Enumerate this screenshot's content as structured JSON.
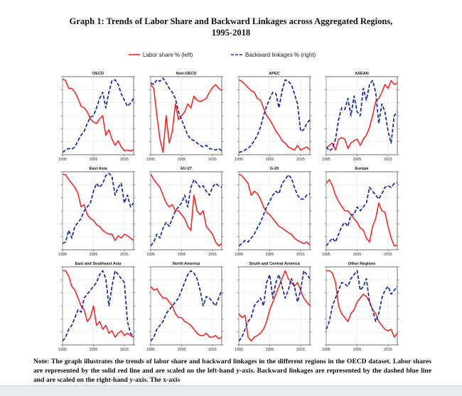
{
  "title_line1": "Graph 1: Trends of Labor Share and Backward Linkages across Aggregated Regions,",
  "title_line2": "1995-2018",
  "legend": {
    "labor": "Labor share % (left)",
    "backward": "Backward linkages % (right)"
  },
  "colors": {
    "labor": "#ff1a1a",
    "backward": "#1f2fa8"
  },
  "note_text": "Note: The graph illustrates the trends of labor share and backward linkages in the different regions in the OECD dataset. Labor shares are represented by the solid red line and are scaled on the left-hand y-axis. Backward linkages are represented by the dashed blue line and are scaled on the right-hand y-axis. The x-axis",
  "chart_data": {
    "type": "line",
    "x_ticks": [
      "1995",
      "2005",
      "2015"
    ],
    "x": [
      1995,
      1996,
      1997,
      1998,
      1999,
      2000,
      2001,
      2002,
      2003,
      2004,
      2005,
      2006,
      2007,
      2008,
      2009,
      2010,
      2011,
      2012,
      2013,
      2014,
      2015,
      2016,
      2017,
      2018
    ],
    "panels": [
      {
        "name": "OECD",
        "labor": [
          0.97,
          0.95,
          0.85,
          0.85,
          0.8,
          0.72,
          0.62,
          0.6,
          0.55,
          0.46,
          0.42,
          0.4,
          0.46,
          0.5,
          0.25,
          0.32,
          0.2,
          0.12,
          0.18,
          0.1,
          0.05,
          0.06,
          0.05,
          0.06
        ],
        "backward": [
          0.03,
          0.06,
          0.08,
          0.07,
          0.1,
          0.18,
          0.25,
          0.3,
          0.4,
          0.48,
          0.5,
          0.6,
          0.72,
          0.8,
          0.6,
          0.8,
          0.95,
          0.96,
          0.9,
          0.78,
          0.7,
          0.62,
          0.66,
          0.72
        ]
      },
      {
        "name": "Non-OECD",
        "labor": [
          0.9,
          0.85,
          0.5,
          0.2,
          0.03,
          0.5,
          0.15,
          0.3,
          0.65,
          0.45,
          0.5,
          0.55,
          0.65,
          0.6,
          0.75,
          0.7,
          0.68,
          0.7,
          0.72,
          0.8,
          0.86,
          0.9,
          0.85,
          0.82
        ],
        "backward": [
          0.92,
          0.9,
          0.96,
          0.94,
          0.98,
          0.92,
          0.85,
          0.8,
          0.72,
          0.55,
          0.45,
          0.35,
          0.25,
          0.2,
          0.18,
          0.15,
          0.12,
          0.1,
          0.12,
          0.08,
          0.07,
          0.06,
          0.08,
          0.05
        ]
      },
      {
        "name": "APEC",
        "labor": [
          0.96,
          0.94,
          0.9,
          0.86,
          0.82,
          0.8,
          0.72,
          0.7,
          0.6,
          0.5,
          0.45,
          0.38,
          0.3,
          0.25,
          0.18,
          0.15,
          0.1,
          0.08,
          0.06,
          0.12,
          0.06,
          0.08,
          0.1,
          0.06
        ],
        "backward": [
          0.03,
          0.04,
          0.06,
          0.08,
          0.12,
          0.18,
          0.25,
          0.35,
          0.5,
          0.62,
          0.72,
          0.8,
          0.78,
          0.6,
          0.82,
          0.96,
          0.94,
          0.9,
          0.78,
          0.65,
          0.3,
          0.32,
          0.4,
          0.45
        ]
      },
      {
        "name": "ASEAN",
        "labor": [
          0.08,
          0.12,
          0.15,
          0.06,
          0.2,
          0.22,
          0.2,
          0.08,
          0.15,
          0.18,
          0.2,
          0.12,
          0.2,
          0.25,
          0.35,
          0.5,
          0.68,
          0.72,
          0.8,
          0.9,
          0.85,
          0.95,
          0.9,
          0.92
        ],
        "backward": [
          0.1,
          0.05,
          0.08,
          0.2,
          0.45,
          0.6,
          0.58,
          0.72,
          0.5,
          0.75,
          0.55,
          0.5,
          0.85,
          0.7,
          0.9,
          0.95,
          0.8,
          0.4,
          0.65,
          0.55,
          0.3,
          0.15,
          0.5,
          0.55
        ]
      },
      {
        "name": "East Asia",
        "labor": [
          0.97,
          0.96,
          0.9,
          0.85,
          0.8,
          0.72,
          0.55,
          0.58,
          0.45,
          0.4,
          0.38,
          0.32,
          0.3,
          0.25,
          0.22,
          0.2,
          0.2,
          0.12,
          0.18,
          0.15,
          0.2,
          0.18,
          0.15,
          0.12
        ],
        "backward": [
          0.08,
          0.1,
          0.25,
          0.15,
          0.3,
          0.35,
          0.4,
          0.5,
          0.55,
          0.6,
          0.75,
          0.85,
          0.8,
          0.85,
          0.95,
          0.98,
          0.94,
          0.7,
          0.8,
          0.85,
          0.6,
          0.7,
          0.55,
          0.6
        ]
      },
      {
        "name": "EU-27",
        "labor": [
          0.97,
          0.9,
          0.85,
          0.8,
          0.7,
          0.6,
          0.55,
          0.58,
          0.5,
          0.5,
          0.45,
          0.4,
          0.3,
          0.25,
          0.7,
          0.5,
          0.45,
          0.5,
          0.3,
          0.25,
          0.2,
          0.1,
          0.05,
          0.08
        ],
        "backward": [
          0.05,
          0.1,
          0.2,
          0.15,
          0.28,
          0.35,
          0.3,
          0.4,
          0.5,
          0.55,
          0.6,
          0.7,
          0.55,
          0.8,
          0.9,
          0.85,
          0.8,
          0.82,
          0.75,
          0.7,
          0.8,
          0.85,
          0.82,
          0.8
        ]
      },
      {
        "name": "G-20",
        "labor": [
          0.97,
          0.95,
          0.9,
          0.85,
          0.7,
          0.75,
          0.72,
          0.65,
          0.55,
          0.48,
          0.45,
          0.4,
          0.35,
          0.3,
          0.28,
          0.25,
          0.22,
          0.2,
          0.15,
          0.12,
          0.1,
          0.08,
          0.1,
          0.06
        ],
        "backward": [
          0.05,
          0.08,
          0.12,
          0.1,
          0.15,
          0.2,
          0.28,
          0.35,
          0.45,
          0.55,
          0.62,
          0.7,
          0.75,
          0.72,
          0.85,
          0.9,
          0.96,
          0.92,
          0.8,
          0.7,
          0.65,
          0.65,
          0.7,
          0.72
        ]
      },
      {
        "name": "Europe",
        "labor": [
          0.85,
          0.9,
          0.82,
          0.7,
          0.62,
          0.56,
          0.5,
          0.5,
          0.45,
          0.4,
          0.35,
          0.28,
          0.25,
          0.15,
          0.1,
          0.3,
          0.4,
          0.6,
          0.5,
          0.48,
          0.3,
          0.15,
          0.05,
          0.06
        ],
        "backward": [
          0.05,
          0.1,
          0.15,
          0.1,
          0.2,
          0.3,
          0.35,
          0.3,
          0.45,
          0.45,
          0.55,
          0.5,
          0.55,
          0.6,
          0.8,
          0.75,
          0.7,
          0.65,
          0.72,
          0.8,
          0.82,
          0.8,
          0.85,
          0.86
        ]
      },
      {
        "name": "East and Southeast Asia",
        "labor": [
          0.95,
          0.95,
          0.88,
          0.75,
          0.7,
          0.6,
          0.5,
          0.45,
          0.3,
          0.35,
          0.5,
          0.25,
          0.3,
          0.2,
          0.25,
          0.15,
          0.18,
          0.1,
          0.15,
          0.18,
          0.12,
          0.15,
          0.12,
          0.1
        ],
        "backward": [
          0.05,
          0.1,
          0.2,
          0.25,
          0.35,
          0.45,
          0.42,
          0.6,
          0.65,
          0.7,
          0.75,
          0.8,
          0.9,
          0.95,
          0.85,
          0.5,
          0.75,
          0.95,
          0.9,
          0.85,
          0.8,
          0.3,
          0.15,
          0.1
        ]
      },
      {
        "name": "North America",
        "labor": [
          0.75,
          0.7,
          0.72,
          0.65,
          0.6,
          0.6,
          0.55,
          0.5,
          0.4,
          0.35,
          0.35,
          0.3,
          0.28,
          0.25,
          0.2,
          0.15,
          0.12,
          0.12,
          0.15,
          0.1,
          0.1,
          0.12,
          0.08,
          0.1
        ],
        "backward": [
          0.05,
          0.1,
          0.2,
          0.25,
          0.3,
          0.4,
          0.45,
          0.5,
          0.55,
          0.6,
          0.7,
          0.8,
          0.9,
          0.95,
          0.92,
          0.85,
          0.7,
          0.5,
          0.62,
          0.6,
          0.55,
          0.5,
          0.6,
          0.7
        ]
      },
      {
        "name": "South and Central America",
        "labor": [
          0.4,
          0.35,
          0.38,
          0.1,
          0.05,
          0.1,
          0.12,
          0.15,
          0.2,
          0.3,
          0.45,
          0.55,
          0.65,
          0.75,
          0.85,
          0.95,
          0.85,
          0.8,
          0.75,
          0.8,
          0.7,
          0.6,
          0.55,
          0.5
        ],
        "backward": [
          0.05,
          0.1,
          0.2,
          0.3,
          0.35,
          0.5,
          0.55,
          0.6,
          0.5,
          0.8,
          0.9,
          0.6,
          0.8,
          0.9,
          0.75,
          0.6,
          0.7,
          0.85,
          0.75,
          0.55,
          0.7,
          0.95,
          0.9,
          0.85
        ]
      },
      {
        "name": "Other Regions",
        "labor": [
          0.95,
          0.95,
          0.92,
          0.8,
          0.5,
          0.4,
          0.35,
          0.3,
          0.4,
          0.45,
          0.55,
          0.6,
          0.65,
          0.62,
          0.55,
          0.45,
          0.4,
          0.3,
          0.25,
          0.2,
          0.18,
          0.2,
          0.1,
          0.15
        ],
        "backward": [
          0.2,
          0.3,
          0.5,
          0.6,
          0.7,
          0.8,
          0.78,
          0.75,
          0.85,
          0.9,
          0.95,
          0.7,
          0.75,
          0.85,
          0.55,
          0.45,
          0.3,
          0.4,
          0.6,
          0.7,
          0.75,
          0.65,
          0.7,
          0.75
        ]
      }
    ]
  }
}
